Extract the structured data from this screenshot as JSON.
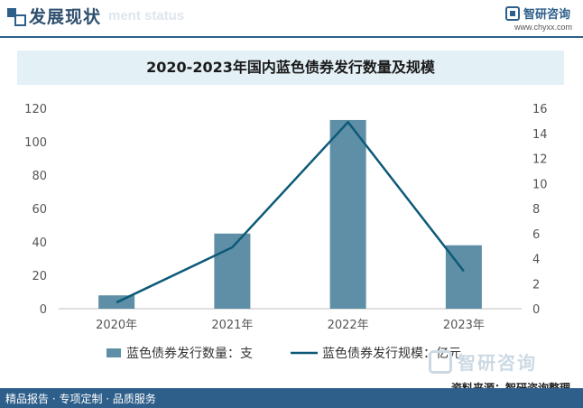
{
  "header": {
    "title": "发展现状",
    "subtitle": "ment status",
    "brand_name": "智研咨询",
    "brand_url": "www.chyxx.com"
  },
  "footer": {
    "left_text": "精品报告 · 专项定制 · 品质服务",
    "source": "资料来源：智研咨询整理",
    "watermark": "智研咨询"
  },
  "colors": {
    "bar": "#5e8fa6",
    "line": "#0d5a78",
    "header": "#2e5f8a"
  },
  "chart_data": {
    "type": "bar",
    "title": "2020-2023年国内蓝色债券发行数量及规模",
    "categories": [
      "2020年",
      "2021年",
      "2022年",
      "2023年"
    ],
    "series": [
      {
        "name": "蓝色债券发行数量：支",
        "type": "bar",
        "axis": "left",
        "values": [
          8,
          45,
          113,
          38
        ]
      },
      {
        "name": "蓝色债券发行规模：亿元",
        "type": "line",
        "axis": "right",
        "values": [
          0.5,
          4.9,
          14.9,
          3.0
        ]
      }
    ],
    "y_left": {
      "min": 0,
      "max": 120,
      "ticks": [
        "0",
        "20",
        "40",
        "60",
        "80",
        "100",
        "120"
      ]
    },
    "y_right": {
      "min": 0,
      "max": 16,
      "ticks": [
        "0",
        "2",
        "4",
        "6",
        "8",
        "10",
        "12",
        "14",
        "16"
      ]
    },
    "grid": false,
    "legend_position": "bottom"
  }
}
